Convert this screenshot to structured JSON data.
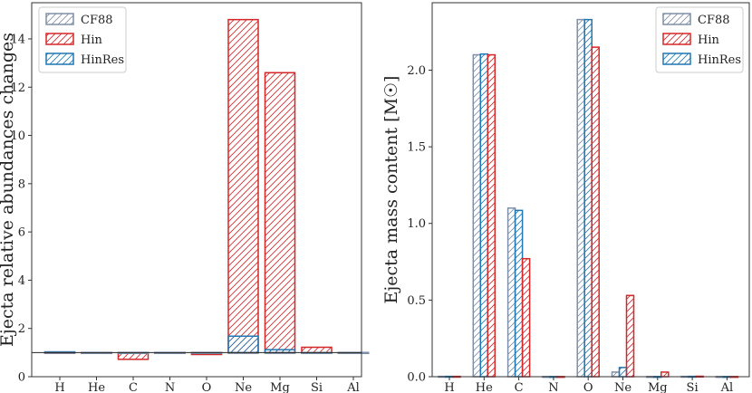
{
  "colors": {
    "CF88": "#7f8fa6",
    "Hin": "#d62728",
    "HinRes": "#1f77b4",
    "axis": "#333333"
  },
  "chart_data": [
    {
      "type": "bar",
      "layout": "overlay",
      "ylabel": "Ejecta relative abundances changes",
      "xlabel": "",
      "categories": [
        "H",
        "He",
        "C",
        "N",
        "O",
        "Ne",
        "Mg",
        "Si",
        "Al"
      ],
      "baseline": 1.0,
      "ylim": [
        0,
        15.5
      ],
      "yticks": [
        0,
        2,
        4,
        6,
        8,
        10,
        12,
        14
      ],
      "legend_position": "top-left",
      "series": [
        {
          "name": "CF88",
          "color": "#7f8fa6",
          "values": [
            1.0,
            1.0,
            1.0,
            1.0,
            1.0,
            1.0,
            1.0,
            1.0,
            1.0
          ]
        },
        {
          "name": "Hin",
          "color": "#d62728",
          "values": [
            1.0,
            1.0,
            0.72,
            0.98,
            0.92,
            14.8,
            12.6,
            1.22,
            1.0
          ]
        },
        {
          "name": "HinRes",
          "color": "#1f77b4",
          "values": [
            1.03,
            1.0,
            1.0,
            0.98,
            0.97,
            1.68,
            1.12,
            1.0,
            1.0
          ]
        }
      ]
    },
    {
      "type": "bar",
      "layout": "grouped",
      "ylabel": "Ejecta mass content [M☉]",
      "xlabel": "",
      "categories": [
        "H",
        "He",
        "C",
        "N",
        "O",
        "Ne",
        "Mg",
        "Si",
        "Al"
      ],
      "ylim": [
        0,
        2.44
      ],
      "yticks": [
        0.0,
        0.5,
        1.0,
        1.5,
        2.0
      ],
      "legend_position": "top-right",
      "series": [
        {
          "name": "CF88",
          "color": "#7f8fa6",
          "values": [
            0.002,
            2.1,
            1.1,
            0.001,
            2.33,
            0.03,
            0.001,
            0.002,
            0.001
          ]
        },
        {
          "name": "HinRes",
          "color": "#1f77b4",
          "values": [
            0.002,
            2.105,
            1.085,
            0.001,
            2.33,
            0.06,
            0.001,
            0.002,
            0.001
          ]
        },
        {
          "name": "Hin",
          "color": "#d62728",
          "values": [
            0.002,
            2.1,
            0.77,
            0.001,
            2.15,
            0.53,
            0.03,
            0.003,
            0.001
          ]
        }
      ],
      "legend_order": [
        "CF88",
        "Hin",
        "HinRes"
      ]
    }
  ]
}
